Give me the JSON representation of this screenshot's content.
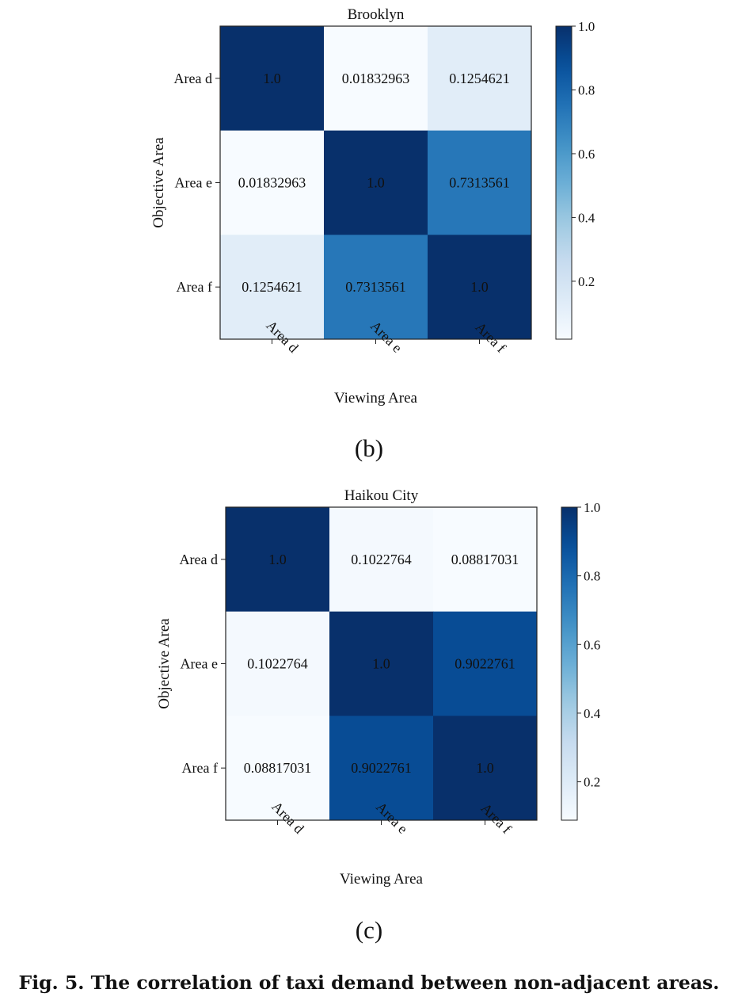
{
  "figure": {
    "caption": "Fig. 5. The correlation of taxi demand between non-adjacent areas.",
    "panel_labels": [
      "(b)",
      "(c)"
    ]
  },
  "chart_data": [
    {
      "type": "heatmap",
      "title": "Brooklyn",
      "xlabel": "Viewing Area",
      "ylabel": "Objective Area",
      "x_categories": [
        "Area d",
        "Area e",
        "Area f"
      ],
      "y_categories": [
        "Area d",
        "Area e",
        "Area f"
      ],
      "values": [
        [
          1.0,
          0.01832963,
          0.1254621
        ],
        [
          0.01832963,
          1.0,
          0.7313561
        ],
        [
          0.1254621,
          0.7313561,
          1.0
        ]
      ],
      "cell_labels": [
        [
          "1.0",
          "0.01832963",
          "0.1254621"
        ],
        [
          "0.01832963",
          "1.0",
          "0.7313561"
        ],
        [
          "0.1254621",
          "0.7313561",
          "1.0"
        ]
      ],
      "colormap": "Blues",
      "colorbar": {
        "range": [
          0.01832963,
          1.0
        ],
        "ticks": [
          0.2,
          0.4,
          0.6,
          0.8,
          1.0
        ],
        "tick_labels": [
          "0.2",
          "0.4",
          "0.6",
          "0.8",
          "1.0"
        ]
      },
      "grid": false
    },
    {
      "type": "heatmap",
      "title": "Haikou City",
      "xlabel": "Viewing Area",
      "ylabel": "Objective Area",
      "x_categories": [
        "Area d",
        "Area e",
        "Area f"
      ],
      "y_categories": [
        "Area d",
        "Area e",
        "Area f"
      ],
      "values": [
        [
          1.0,
          0.1022764,
          0.08817031
        ],
        [
          0.1022764,
          1.0,
          0.9022761
        ],
        [
          0.08817031,
          0.9022761,
          1.0
        ]
      ],
      "cell_labels": [
        [
          "1.0",
          "0.1022764",
          "0.08817031"
        ],
        [
          "0.1022764",
          "1.0",
          "0.9022761"
        ],
        [
          "0.08817031",
          "0.9022761",
          "1.0"
        ]
      ],
      "colormap": "Blues",
      "colorbar": {
        "range": [
          0.08817031,
          1.0
        ],
        "ticks": [
          0.2,
          0.4,
          0.6,
          0.8,
          1.0
        ],
        "tick_labels": [
          "0.2",
          "0.4",
          "0.6",
          "0.8",
          "1.0"
        ]
      },
      "grid": false
    }
  ]
}
